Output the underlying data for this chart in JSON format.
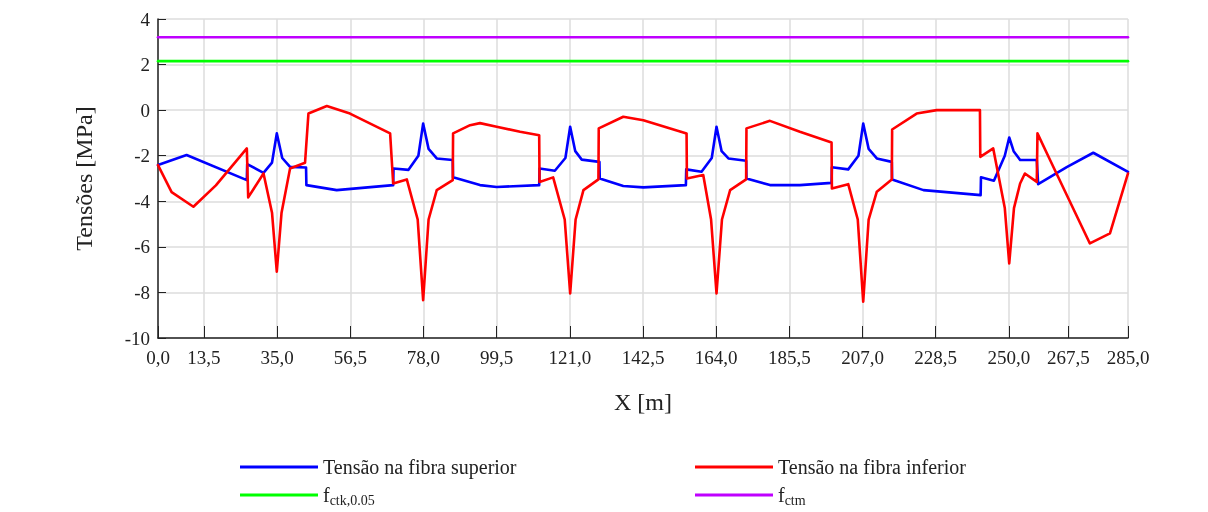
{
  "chart_data": {
    "type": "line",
    "xlabel": "X [m]",
    "ylabel": "Tensões [MPa]",
    "xlim": [
      0,
      285
    ],
    "ylim": [
      -10,
      4
    ],
    "xticks": [
      {
        "value": 0,
        "label": "0,0"
      },
      {
        "value": 13.5,
        "label": "13,5"
      },
      {
        "value": 35,
        "label": "35,0"
      },
      {
        "value": 56.5,
        "label": "56,5"
      },
      {
        "value": 78,
        "label": "78,0"
      },
      {
        "value": 99.5,
        "label": "99,5"
      },
      {
        "value": 121,
        "label": "121,0"
      },
      {
        "value": 142.5,
        "label": "142,5"
      },
      {
        "value": 164,
        "label": "164,0"
      },
      {
        "value": 185.5,
        "label": "185,5"
      },
      {
        "value": 207,
        "label": "207,0"
      },
      {
        "value": 228.5,
        "label": "228,5"
      },
      {
        "value": 250,
        "label": "250,0"
      },
      {
        "value": 267.5,
        "label": "267,5"
      },
      {
        "value": 285,
        "label": "285,0"
      }
    ],
    "yticks": [
      -10,
      -8,
      -6,
      -4,
      -2,
      0,
      2,
      4
    ],
    "grid": true,
    "legend": "bottom",
    "marker": "none",
    "line_style": "solid",
    "series": [
      {
        "name": "Tensão na fibra superior",
        "color": "#0000ff",
        "x": [
          0,
          8.4,
          26.1,
          26.2,
          31,
          33.5,
          34.9,
          36.5,
          38.8,
          43.5,
          43.6,
          52.5,
          69.1,
          69.2,
          73.6,
          76.5,
          77.9,
          79.5,
          81.9,
          86.6,
          86.7,
          94.6,
          99.5,
          112,
          112.1,
          116.6,
          119.7,
          121.1,
          122.6,
          124.5,
          129.7,
          129.8,
          136.7,
          142.6,
          155.1,
          155.2,
          159.7,
          162.7,
          164.1,
          165.6,
          167.6,
          172.8,
          172.9,
          179.8,
          188.6,
          197.9,
          198,
          202.8,
          205.8,
          207.2,
          208.8,
          211.2,
          215.6,
          215.7,
          224.9,
          241.7,
          241.8,
          245.6,
          248.8,
          250.1,
          251.4,
          253.3,
          258.2,
          258.6,
          267,
          274.8,
          285
        ],
        "values": [
          -2.41,
          -1.97,
          -3.07,
          -2.37,
          -2.75,
          -2.3,
          -1.02,
          -2.1,
          -2.49,
          -2.52,
          -3.29,
          -3.51,
          -3.29,
          -2.56,
          -2.62,
          -2.0,
          -0.59,
          -1.7,
          -2.12,
          -2.19,
          -2.95,
          -3.29,
          -3.37,
          -3.29,
          -2.56,
          -2.66,
          -2.1,
          -0.73,
          -1.8,
          -2.17,
          -2.27,
          -3.0,
          -3.33,
          -3.39,
          -3.29,
          -2.6,
          -2.7,
          -2.1,
          -0.73,
          -1.8,
          -2.12,
          -2.22,
          -3.0,
          -3.29,
          -3.29,
          -3.19,
          -2.51,
          -2.6,
          -2.0,
          -0.59,
          -1.7,
          -2.12,
          -2.27,
          -3.04,
          -3.51,
          -3.73,
          -2.95,
          -3.1,
          -2.0,
          -1.2,
          -1.8,
          -2.19,
          -2.19,
          -3.25,
          -2.5,
          -1.87,
          -2.71
        ]
      },
      {
        "name": "Tensão na fibra inferior",
        "color": "#ff0000",
        "x": [
          0,
          4,
          10.4,
          17,
          26.1,
          26.5,
          31,
          33.5,
          34.9,
          36.3,
          38.8,
          43.2,
          44.2,
          49.6,
          56.4,
          68.2,
          69.1,
          73.1,
          76.3,
          77.9,
          79.5,
          81.9,
          86.6,
          86.7,
          91.7,
          94.6,
          99.5,
          106.4,
          112,
          112.1,
          116.1,
          119.5,
          121.1,
          122.7,
          125,
          129.4,
          129.5,
          136.7,
          142.6,
          155.3,
          155.4,
          160.2,
          162.5,
          164.1,
          165.7,
          168.1,
          172.8,
          172.9,
          179.8,
          188.6,
          197.9,
          198,
          202.8,
          205.6,
          207.2,
          208.8,
          211.2,
          215.6,
          215.7,
          222.9,
          228.8,
          241.5,
          241.6,
          245.4,
          248.8,
          250.1,
          251.5,
          253.3,
          254.7,
          258.2,
          258.4,
          262.1,
          273.8,
          279.7,
          285
        ],
        "values": [
          -2.41,
          -3.6,
          -4.24,
          -3.3,
          -1.68,
          -3.83,
          -2.78,
          -4.5,
          -7.09,
          -4.5,
          -2.56,
          -2.31,
          -0.15,
          0.18,
          -0.15,
          -1.02,
          -3.22,
          -3.04,
          -4.8,
          -8.34,
          -4.8,
          -3.51,
          -3.07,
          -1.02,
          -0.66,
          -0.57,
          -0.73,
          -0.95,
          -1.1,
          -3.15,
          -2.95,
          -4.8,
          -8.04,
          -4.8,
          -3.51,
          -3.04,
          -0.8,
          -0.29,
          -0.44,
          -1.02,
          -3.0,
          -2.85,
          -4.8,
          -8.04,
          -4.8,
          -3.51,
          -3.04,
          -0.8,
          -0.47,
          -0.95,
          -1.42,
          -3.44,
          -3.25,
          -4.8,
          -8.41,
          -4.8,
          -3.58,
          -3.04,
          -0.85,
          -0.15,
          0,
          0,
          -2.05,
          -1.68,
          -4.3,
          -6.73,
          -4.3,
          -3.22,
          -2.78,
          -3.15,
          -1.02,
          -2.19,
          -5.85,
          -5.41,
          -2.78
        ]
      },
      {
        "name": "f$_{ctk,0.05}$",
        "color": "#00ff00",
        "x": [
          0,
          285
        ],
        "values": [
          2.15,
          2.15
        ]
      },
      {
        "name": "f$_{ctm}$",
        "color": "#bf00ff",
        "x": [
          0,
          285
        ],
        "values": [
          3.2,
          3.2
        ]
      }
    ]
  }
}
